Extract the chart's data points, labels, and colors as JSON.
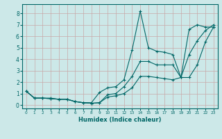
{
  "title": "",
  "xlabel": "Humidex (Indice chaleur)",
  "background_color": "#cce8e8",
  "grid_color": "#c8a8a8",
  "line_color": "#006666",
  "xlim": [
    -0.5,
    23.5
  ],
  "ylim": [
    -0.3,
    8.8
  ],
  "xticks": [
    0,
    1,
    2,
    3,
    4,
    5,
    6,
    7,
    8,
    9,
    10,
    11,
    12,
    13,
    14,
    15,
    16,
    17,
    18,
    19,
    20,
    21,
    22,
    23
  ],
  "yticks": [
    0,
    1,
    2,
    3,
    4,
    5,
    6,
    7,
    8
  ],
  "series": [
    {
      "x": [
        0,
        1,
        2,
        3,
        4,
        5,
        6,
        7,
        8,
        9,
        10,
        11,
        12,
        13,
        14,
        15,
        16,
        17,
        18,
        19,
        20,
        21,
        22,
        23
      ],
      "y": [
        1.2,
        0.6,
        0.6,
        0.6,
        0.5,
        0.5,
        0.3,
        0.2,
        0.2,
        1.1,
        1.5,
        1.6,
        2.2,
        4.8,
        8.2,
        5.0,
        4.7,
        4.6,
        4.4,
        2.4,
        6.6,
        7.0,
        6.8,
        6.8
      ]
    },
    {
      "x": [
        0,
        1,
        2,
        3,
        4,
        5,
        6,
        7,
        8,
        9,
        10,
        11,
        12,
        13,
        14,
        15,
        16,
        17,
        18,
        19,
        20,
        21,
        22,
        23
      ],
      "y": [
        1.2,
        0.6,
        0.6,
        0.55,
        0.5,
        0.5,
        0.3,
        0.2,
        0.15,
        0.2,
        0.9,
        1.0,
        1.6,
        2.5,
        3.8,
        3.8,
        3.5,
        3.5,
        3.5,
        2.4,
        4.4,
        5.6,
        6.5,
        7.0
      ]
    },
    {
      "x": [
        0,
        1,
        2,
        3,
        4,
        5,
        6,
        7,
        8,
        9,
        10,
        11,
        12,
        13,
        14,
        15,
        16,
        17,
        18,
        19,
        20,
        21,
        22,
        23
      ],
      "y": [
        1.2,
        0.6,
        0.6,
        0.55,
        0.5,
        0.5,
        0.3,
        0.2,
        0.15,
        0.2,
        0.7,
        0.8,
        1.0,
        1.5,
        2.5,
        2.5,
        2.4,
        2.3,
        2.2,
        2.4,
        2.4,
        3.5,
        5.5,
        6.8
      ]
    }
  ]
}
